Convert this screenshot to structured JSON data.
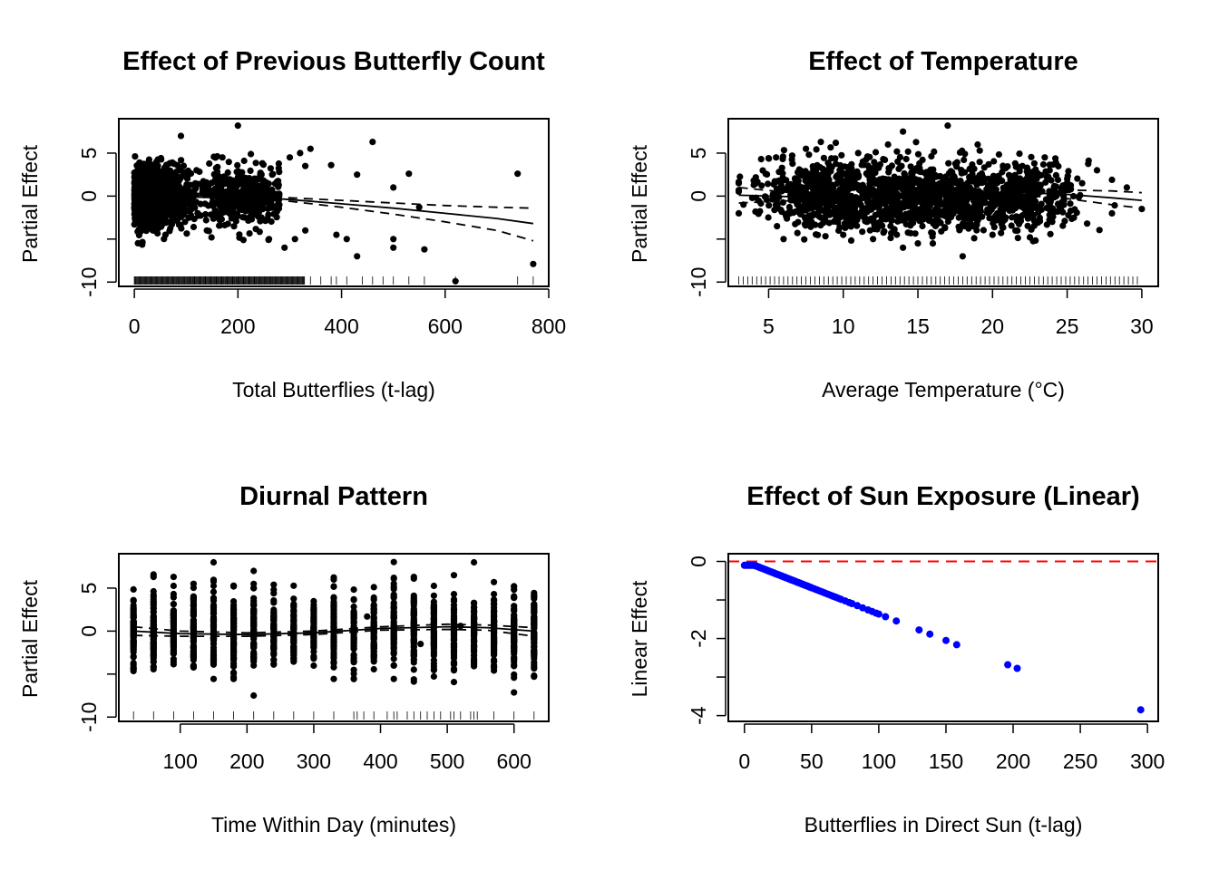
{
  "chart_data": [
    {
      "type": "scatter",
      "title": "Effect of Previous Butterfly Count",
      "xlabel": "Total Butterflies (t-lag)",
      "ylabel": "Partial Effect",
      "xlim": [
        -30,
        800
      ],
      "ylim": [
        -10.5,
        9
      ],
      "xticks": [
        0,
        200,
        400,
        600,
        800
      ],
      "yticks": [
        -10,
        -5,
        0,
        5
      ],
      "ytick_labels": [
        "-10",
        "",
        "0",
        "5"
      ],
      "rug": true,
      "point_color": "#000000",
      "smooth": {
        "x": [
          0,
          100,
          200,
          300,
          400,
          500,
          600,
          700,
          770
        ],
        "fit": [
          0.3,
          0.1,
          0,
          -0.4,
          -0.9,
          -1.4,
          -2.0,
          -2.6,
          -3.2
        ],
        "upper": [
          0.6,
          0.3,
          0.2,
          -0.2,
          -0.5,
          -0.8,
          -1.1,
          -1.3,
          -1.4
        ],
        "lower": [
          0,
          -0.1,
          -0.2,
          -0.6,
          -1.3,
          -2.1,
          -3.0,
          -4.0,
          -5.2
        ]
      },
      "points": [
        [
          20,
          0.5
        ],
        [
          10,
          2
        ],
        [
          30,
          -1
        ],
        [
          50,
          1.5
        ],
        [
          70,
          -2
        ],
        [
          100,
          0
        ],
        [
          120,
          3
        ],
        [
          150,
          -1
        ],
        [
          200,
          -0.5
        ],
        [
          210,
          1.5
        ],
        [
          230,
          -2
        ],
        [
          250,
          0.5
        ],
        [
          280,
          -1
        ],
        [
          90,
          7
        ],
        [
          200,
          8.2
        ],
        [
          460,
          6.3
        ],
        [
          530,
          2.6
        ],
        [
          740,
          2.6
        ],
        [
          620,
          -9.9
        ],
        [
          770,
          -7.9
        ],
        [
          500,
          -5
        ],
        [
          500,
          -6
        ],
        [
          560,
          -6.2
        ],
        [
          430,
          -7
        ],
        [
          390,
          -4.5
        ],
        [
          410,
          -5
        ],
        [
          330,
          -4
        ],
        [
          310,
          -5
        ],
        [
          330,
          3.5
        ],
        [
          380,
          3.6
        ],
        [
          430,
          2.5
        ],
        [
          500,
          1
        ],
        [
          550,
          -1.3
        ],
        [
          340,
          5.5
        ],
        [
          300,
          4.5
        ],
        [
          320,
          5
        ],
        [
          170,
          4.5
        ],
        [
          60,
          -4.5
        ],
        [
          40,
          -4
        ],
        [
          140,
          -4
        ],
        [
          290,
          -6
        ],
        [
          260,
          -5
        ]
      ]
    },
    {
      "type": "scatter",
      "title": "Effect of Temperature",
      "xlabel": "Average Temperature (°C)",
      "ylabel": "Partial Effect",
      "xlim": [
        2.3,
        31.1
      ],
      "ylim": [
        -10.5,
        9
      ],
      "xticks": [
        5,
        10,
        15,
        20,
        25,
        30
      ],
      "yticks": [
        -10,
        -5,
        0,
        5
      ],
      "ytick_labels": [
        "-10",
        "",
        "0",
        "5"
      ],
      "rug": true,
      "point_color": "#000000",
      "smooth": {
        "x": [
          3,
          7,
          10,
          13,
          16,
          19,
          22,
          25,
          28,
          30
        ],
        "fit": [
          0.1,
          -0.1,
          -0.2,
          -0.1,
          0.1,
          0.3,
          0.4,
          0.2,
          -0.2,
          -0.5
        ],
        "upper": [
          1,
          0.3,
          0,
          0.1,
          0.3,
          0.5,
          0.7,
          0.7,
          0.6,
          0.4
        ],
        "lower": [
          -0.8,
          -0.5,
          -0.4,
          -0.3,
          -0.1,
          0.1,
          0.1,
          -0.3,
          -1,
          -1.4
        ]
      },
      "points": [
        [
          3,
          1.5
        ],
        [
          3,
          -2
        ],
        [
          4,
          1.8
        ],
        [
          4.5,
          4.3
        ],
        [
          5,
          4.4
        ],
        [
          5.5,
          4.5
        ],
        [
          6,
          -5
        ],
        [
          7.5,
          5.5
        ],
        [
          8.5,
          6.3
        ],
        [
          9.5,
          6.2
        ],
        [
          11,
          5
        ],
        [
          13,
          6
        ],
        [
          14,
          7.5
        ],
        [
          17,
          8.2
        ],
        [
          18,
          -7
        ],
        [
          19,
          6
        ],
        [
          23.5,
          4.5
        ],
        [
          25,
          2
        ],
        [
          26,
          1.5
        ],
        [
          28,
          -2
        ],
        [
          29,
          1
        ],
        [
          30,
          -1.5
        ],
        [
          27,
          3
        ],
        [
          28,
          1.9
        ],
        [
          22,
          3.5
        ],
        [
          24,
          -3
        ],
        [
          10,
          -4.5
        ],
        [
          12,
          -5
        ],
        [
          15,
          -5.5
        ],
        [
          20,
          -4.5
        ],
        [
          16,
          -5.5
        ],
        [
          14,
          -6
        ]
      ]
    },
    {
      "type": "scatter",
      "title": "Diurnal Pattern",
      "xlabel": "Time Within Day (minutes)",
      "ylabel": "Partial Effect",
      "xlim": [
        8,
        652
      ],
      "ylim": [
        -10.5,
        9
      ],
      "xticks": [
        100,
        200,
        300,
        400,
        500,
        600
      ],
      "yticks": [
        -10,
        -5,
        0,
        5
      ],
      "ytick_labels": [
        "-10",
        "",
        "0",
        "5"
      ],
      "rug": true,
      "point_color": "#000000",
      "columns": [
        30,
        60,
        90,
        120,
        150,
        180,
        210,
        240,
        270,
        300,
        330,
        360,
        390,
        420,
        450,
        480,
        510,
        540,
        570,
        600,
        630
      ],
      "smooth": {
        "x": [
          30,
          100,
          200,
          300,
          400,
          500,
          560,
          630
        ],
        "fit": [
          0,
          -0.3,
          -0.4,
          -0.2,
          0.3,
          0.5,
          0.4,
          0
        ],
        "upper": [
          0.5,
          0,
          -0.2,
          0,
          0.5,
          0.8,
          0.7,
          0.4
        ],
        "lower": [
          -0.5,
          -0.6,
          -0.6,
          -0.4,
          0.1,
          0.2,
          0.1,
          -0.6
        ]
      },
      "points": [
        [
          150,
          8
        ],
        [
          210,
          7
        ],
        [
          540,
          8
        ],
        [
          60,
          6.3
        ],
        [
          90,
          6.3
        ],
        [
          120,
          5.5
        ],
        [
          180,
          5.2
        ],
        [
          240,
          4.8
        ],
        [
          330,
          6
        ],
        [
          420,
          6.2
        ],
        [
          450,
          6.3
        ],
        [
          510,
          6.5
        ],
        [
          570,
          5.7
        ],
        [
          600,
          5.2
        ],
        [
          210,
          -7.5
        ],
        [
          360,
          -5.5
        ],
        [
          630,
          -5.3
        ],
        [
          460,
          -1.5
        ],
        [
          520,
          0.6
        ],
        [
          380,
          1.7
        ]
      ]
    },
    {
      "type": "scatter",
      "title": "Effect of Sun Exposure (Linear)",
      "xlabel": "Butterflies in Direct Sun (t-lag)",
      "ylabel": "Linear Effect",
      "xlim": [
        -12,
        308
      ],
      "ylim": [
        -4.15,
        0.2
      ],
      "xticks": [
        0,
        50,
        100,
        150,
        200,
        250,
        300
      ],
      "yticks": [
        -4,
        -3,
        -2,
        -1,
        0
      ],
      "ytick_labels": [
        "-4",
        "",
        "-2",
        "",
        "0"
      ],
      "slope": -0.01367,
      "hline": 0,
      "hline_color": "#ff0000",
      "point_color": "#0000ff",
      "x": [
        0,
        1,
        2,
        3,
        4,
        5,
        6,
        7,
        8,
        9,
        10,
        11,
        12,
        13,
        14,
        15,
        16,
        17,
        18,
        19,
        20,
        21,
        22,
        23,
        24,
        25,
        26,
        27,
        28,
        29,
        30,
        31,
        32,
        33,
        34,
        35,
        36,
        37,
        38,
        39,
        40,
        41,
        42,
        43,
        44,
        45,
        46,
        47,
        48,
        49,
        50,
        52,
        54,
        56,
        58,
        60,
        62,
        64,
        66,
        68,
        70,
        72,
        75,
        78,
        80,
        84,
        88,
        92,
        95,
        98,
        100,
        105,
        113,
        130,
        138,
        150,
        158,
        196,
        203,
        295
      ]
    }
  ]
}
